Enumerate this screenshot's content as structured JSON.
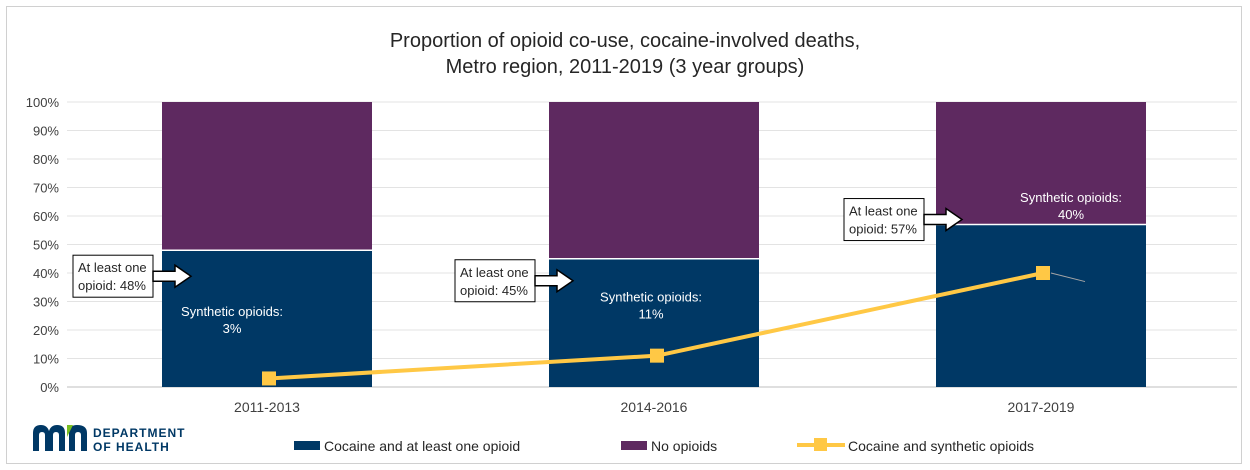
{
  "chart_data": {
    "type": "bar",
    "stacked": true,
    "title_lines": [
      "Proportion of opioid co-use, cocaine-involved deaths,",
      "Metro region, 2011-2019 (3 year groups)"
    ],
    "categories": [
      "2011-2013",
      "2014-2016",
      "2017-2019"
    ],
    "series": [
      {
        "name": "Cocaine and at least one opioid",
        "type": "bar",
        "values": [
          48,
          45,
          57
        ],
        "color": "#003865"
      },
      {
        "name": "No opioids",
        "type": "bar",
        "values": [
          52,
          55,
          43
        ],
        "color": "#5e2960"
      },
      {
        "name": "Cocaine and synthetic opioids",
        "type": "line",
        "values": [
          3,
          11,
          40
        ],
        "color": "#ffc845"
      }
    ],
    "ylim": [
      0,
      100
    ],
    "yticks": [
      "0%",
      "10%",
      "20%",
      "30%",
      "40%",
      "50%",
      "60%",
      "70%",
      "80%",
      "90%",
      "100%"
    ],
    "grid": true,
    "legend_position": "bottom",
    "annotations": {
      "at_least_one": [
        {
          "line1": "At least one",
          "line2": "opioid: 48%"
        },
        {
          "line1": "At least one",
          "line2": "opioid: 45%"
        },
        {
          "line1": "At least one",
          "line2": "opioid: 57%"
        }
      ],
      "synthetic": [
        {
          "line1": "Synthetic opioids:",
          "line2": "3%"
        },
        {
          "line1": "Synthetic opioids:",
          "line2": "11%"
        },
        {
          "line1": "Synthetic opioids:",
          "line2": "40%"
        }
      ]
    }
  },
  "logo": {
    "line1": "DEPARTMENT",
    "line2": "OF HEALTH",
    "colors": {
      "mark": "#003865",
      "accent": "#78be21"
    }
  }
}
